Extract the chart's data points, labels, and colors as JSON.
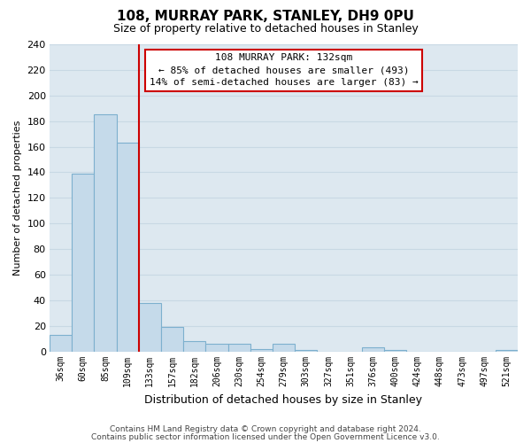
{
  "title": "108, MURRAY PARK, STANLEY, DH9 0PU",
  "subtitle": "Size of property relative to detached houses in Stanley",
  "xlabel": "Distribution of detached houses by size in Stanley",
  "ylabel": "Number of detached properties",
  "bar_labels": [
    "36sqm",
    "60sqm",
    "85sqm",
    "109sqm",
    "133sqm",
    "157sqm",
    "182sqm",
    "206sqm",
    "230sqm",
    "254sqm",
    "279sqm",
    "303sqm",
    "327sqm",
    "351sqm",
    "376sqm",
    "400sqm",
    "424sqm",
    "448sqm",
    "473sqm",
    "497sqm",
    "521sqm"
  ],
  "bar_values": [
    13,
    139,
    185,
    163,
    38,
    19,
    8,
    6,
    6,
    2,
    6,
    1,
    0,
    0,
    3,
    1,
    0,
    0,
    0,
    0,
    1
  ],
  "bar_color": "#c5daea",
  "bar_edge_color": "#7db0ce",
  "vline_color": "#cc0000",
  "vline_position": 3.5,
  "ylim": [
    0,
    240
  ],
  "yticks": [
    0,
    20,
    40,
    60,
    80,
    100,
    120,
    140,
    160,
    180,
    200,
    220,
    240
  ],
  "annotation_title": "108 MURRAY PARK: 132sqm",
  "annotation_line1": "← 85% of detached houses are smaller (493)",
  "annotation_line2": "14% of semi-detached houses are larger (83) →",
  "footer1": "Contains HM Land Registry data © Crown copyright and database right 2024.",
  "footer2": "Contains public sector information licensed under the Open Government Licence v3.0.",
  "background_color": "#dde8f0",
  "grid_color": "#c8d8e4",
  "fig_bg_color": "#ffffff",
  "title_fontsize": 11,
  "subtitle_fontsize": 9,
  "xlabel_fontsize": 9,
  "ylabel_fontsize": 8,
  "tick_fontsize": 8,
  "xtick_fontsize": 7,
  "footer_fontsize": 6.5,
  "annotation_fontsize": 8
}
